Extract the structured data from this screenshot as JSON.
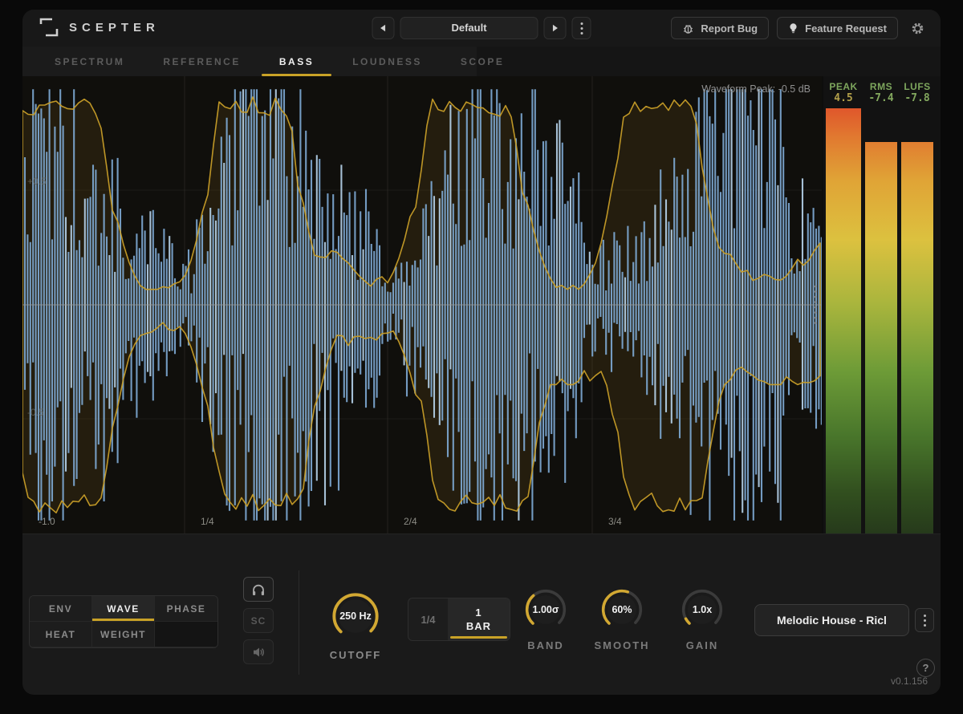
{
  "window": {
    "title": "SCEPTER",
    "version": "v0.1.156"
  },
  "header": {
    "preset": {
      "value": "Default"
    },
    "report_bug": "Report Bug",
    "feature_request": "Feature Request"
  },
  "tabs": [
    {
      "label": "SPECTRUM",
      "active": false
    },
    {
      "label": "REFERENCE",
      "active": false
    },
    {
      "label": "BASS",
      "active": true
    },
    {
      "label": "LOUDNESS",
      "active": false
    },
    {
      "label": "SCOPE",
      "active": false
    }
  ],
  "display": {
    "peak_readout": "Waveform Peak: -0.5 dB",
    "y_labels": [
      "+0.5",
      "-0.5",
      "-1.0"
    ],
    "x_labels": [
      "1/4",
      "2/4",
      "3/4"
    ],
    "colors": {
      "waveform": "#7fabd6",
      "waveform_bright": "#b7d4ec",
      "envelope": "#c79d28",
      "envelope_fill": "rgba(140,105,25,0.16)",
      "centerline": "#9a9a98",
      "grid": "#33332e"
    }
  },
  "meters": [
    {
      "label": "PEAK",
      "value": "4.5",
      "fill": 1.0,
      "value_color": "#b3a04a"
    },
    {
      "label": "RMS",
      "value": "-7.4",
      "fill": 0.92,
      "value_color": "#83a85e"
    },
    {
      "label": "LUFS",
      "value": "-7.8",
      "fill": 0.92,
      "value_color": "#83a85e"
    }
  ],
  "controls": {
    "mode_buttons": [
      {
        "label": "ENV",
        "active": false
      },
      {
        "label": "WAVE",
        "active": true
      },
      {
        "label": "PHASE",
        "active": false
      },
      {
        "label": "HEAT",
        "active": false
      },
      {
        "label": "WEIGHT",
        "active": false
      },
      {
        "label": "",
        "active": false
      }
    ],
    "monitor": {
      "sc_label": "SC"
    },
    "knobs": [
      {
        "label": "CUTOFF",
        "value": "250 Hz",
        "fill": 1.0
      },
      {
        "label": "BAND",
        "value": "1.00σ",
        "fill": 0.35
      },
      {
        "label": "SMOOTH",
        "value": "60%",
        "fill": 0.57
      },
      {
        "label": "GAIN",
        "value": "1.0x",
        "fill": 0.06
      }
    ],
    "rate_toggle": {
      "left": "1/4",
      "right_top": "1",
      "right_bottom": "BAR"
    },
    "preset_button": "Melodic House - Ricl",
    "help_icon": "?"
  }
}
